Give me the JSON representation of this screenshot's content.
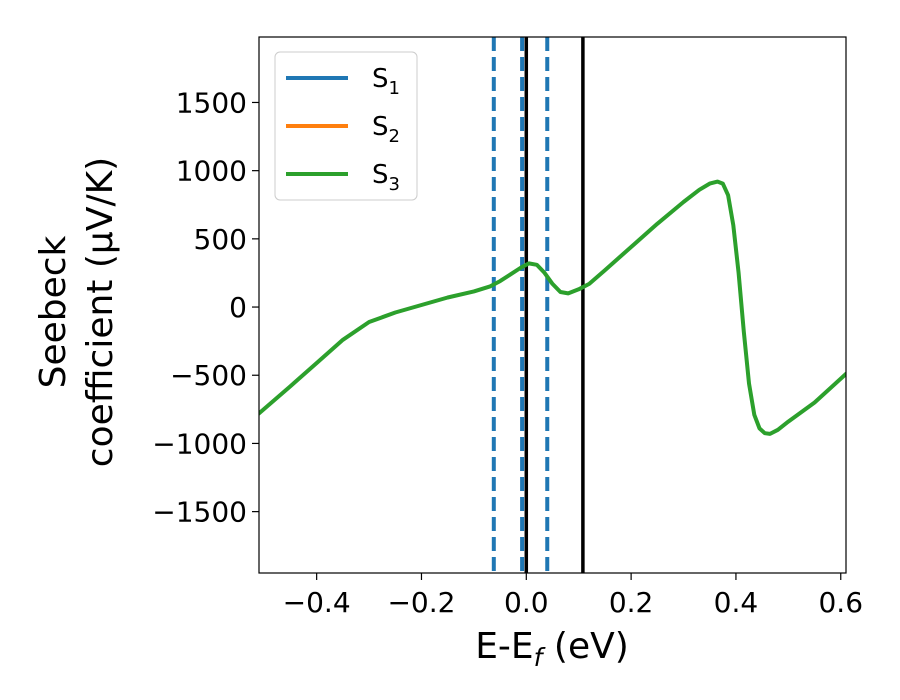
{
  "chart_data": {
    "type": "line",
    "xlabel": {
      "main": "E-E",
      "sub": "f",
      "tail": " (eV)"
    },
    "ylabel": {
      "line1": "Seebeck",
      "line2": "coefficient  (μV/K)"
    },
    "xlim": [
      -0.51,
      0.61
    ],
    "ylim": [
      -1950,
      1980
    ],
    "xticks": [
      -0.4,
      -0.2,
      0.0,
      0.2,
      0.4,
      0.6
    ],
    "xtick_labels": [
      "−0.4",
      "−0.2",
      "0.0",
      "0.2",
      "0.4",
      "0.6"
    ],
    "yticks": [
      -1500,
      -1000,
      -500,
      0,
      500,
      1000,
      1500
    ],
    "ytick_labels": [
      "−1500",
      "−1000",
      "−500",
      "0",
      "500",
      "1000",
      "1500"
    ],
    "grid": false,
    "legend_position": "top-left",
    "series": [
      {
        "name": "S",
        "sub": "1",
        "color": "#1f77b4",
        "points": []
      },
      {
        "name": "S",
        "sub": "2",
        "color": "#ff7f0e",
        "points": []
      },
      {
        "name": "S",
        "sub": "3",
        "color": "#2ca02c",
        "points": [
          [
            -0.51,
            -780
          ],
          [
            -0.45,
            -580
          ],
          [
            -0.4,
            -410
          ],
          [
            -0.35,
            -240
          ],
          [
            -0.3,
            -110
          ],
          [
            -0.25,
            -40
          ],
          [
            -0.2,
            15
          ],
          [
            -0.15,
            70
          ],
          [
            -0.1,
            115
          ],
          [
            -0.07,
            150
          ],
          [
            -0.05,
            190
          ],
          [
            -0.03,
            240
          ],
          [
            -0.01,
            290
          ],
          [
            0.005,
            320
          ],
          [
            0.02,
            310
          ],
          [
            0.035,
            250
          ],
          [
            0.05,
            170
          ],
          [
            0.065,
            110
          ],
          [
            0.08,
            100
          ],
          [
            0.1,
            130
          ],
          [
            0.12,
            170
          ],
          [
            0.15,
            270
          ],
          [
            0.2,
            440
          ],
          [
            0.25,
            610
          ],
          [
            0.3,
            770
          ],
          [
            0.33,
            860
          ],
          [
            0.35,
            905
          ],
          [
            0.365,
            920
          ],
          [
            0.375,
            905
          ],
          [
            0.385,
            820
          ],
          [
            0.395,
            600
          ],
          [
            0.405,
            250
          ],
          [
            0.415,
            -180
          ],
          [
            0.425,
            -560
          ],
          [
            0.435,
            -790
          ],
          [
            0.445,
            -890
          ],
          [
            0.455,
            -925
          ],
          [
            0.465,
            -930
          ],
          [
            0.48,
            -900
          ],
          [
            0.5,
            -840
          ],
          [
            0.55,
            -700
          ],
          [
            0.61,
            -490
          ]
        ]
      }
    ],
    "vlines": [
      {
        "x": -0.062,
        "style": "dashed",
        "color": "#1f77b4"
      },
      {
        "x": -0.008,
        "style": "dashed",
        "color": "#1f77b4"
      },
      {
        "x": 0.04,
        "style": "dashed",
        "color": "#1f77b4"
      },
      {
        "x": 0.0,
        "style": "solid",
        "color": "#000000"
      },
      {
        "x": 0.108,
        "style": "solid",
        "color": "#000000"
      }
    ]
  }
}
